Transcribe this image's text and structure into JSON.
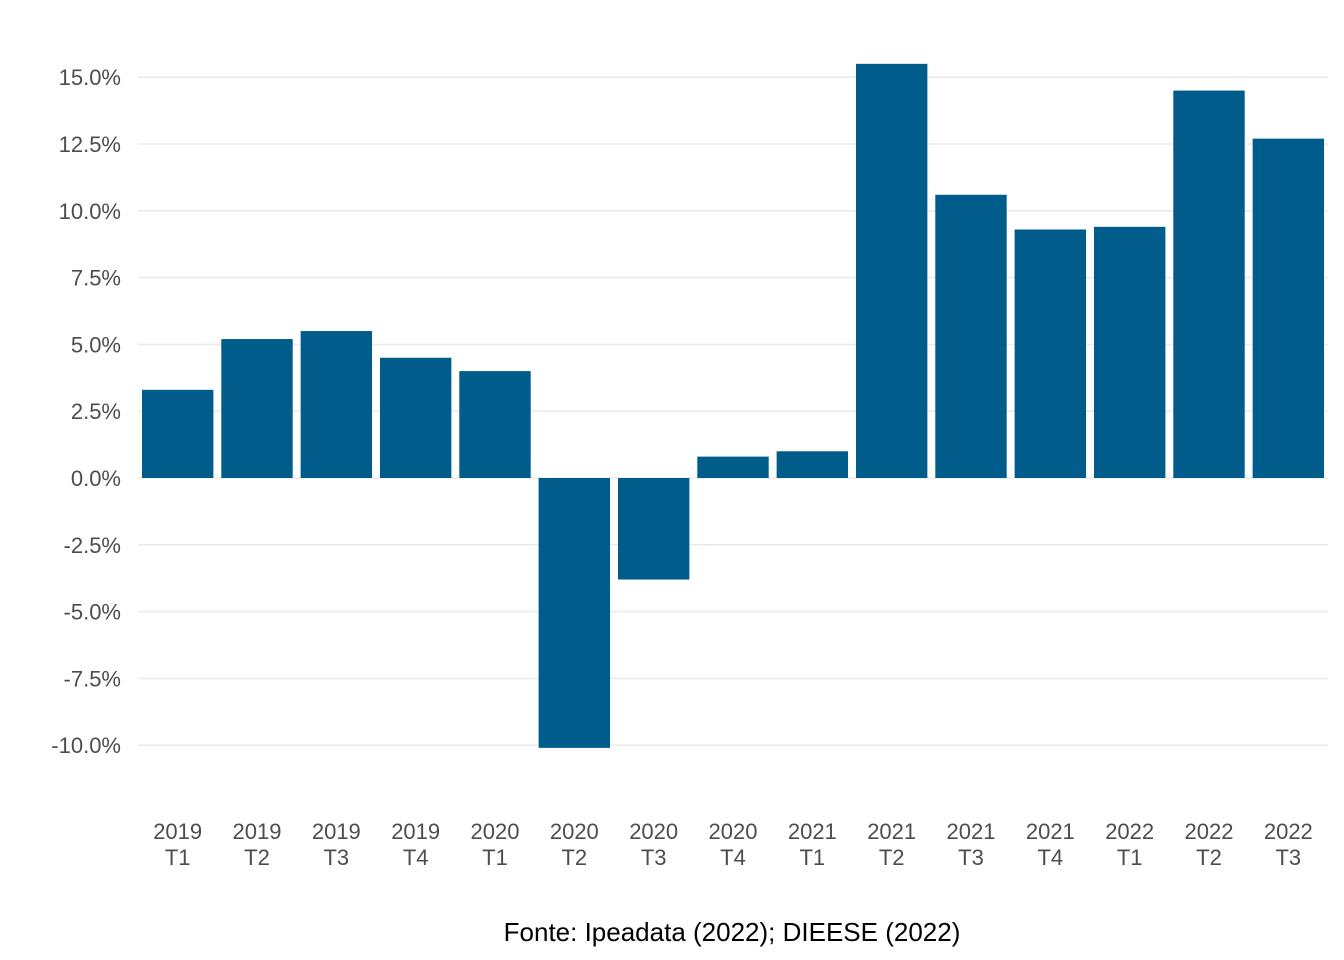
{
  "chart_data": {
    "type": "bar",
    "categories": [
      [
        "2019",
        "T1"
      ],
      [
        "2019",
        "T2"
      ],
      [
        "2019",
        "T3"
      ],
      [
        "2019",
        "T4"
      ],
      [
        "2020",
        "T1"
      ],
      [
        "2020",
        "T2"
      ],
      [
        "2020",
        "T3"
      ],
      [
        "2020",
        "T4"
      ],
      [
        "2021",
        "T1"
      ],
      [
        "2021",
        "T2"
      ],
      [
        "2021",
        "T3"
      ],
      [
        "2021",
        "T4"
      ],
      [
        "2022",
        "T1"
      ],
      [
        "2022",
        "T2"
      ],
      [
        "2022",
        "T3"
      ]
    ],
    "values": [
      3.3,
      5.2,
      5.5,
      4.5,
      4.0,
      -10.1,
      -3.8,
      0.8,
      1.0,
      15.5,
      10.6,
      9.3,
      9.4,
      14.5,
      12.7
    ],
    "y_ticks": [
      -10.0,
      -7.5,
      -5.0,
      -2.5,
      0.0,
      2.5,
      5.0,
      7.5,
      10.0,
      12.5,
      15.0
    ],
    "y_tick_labels": [
      "-10.0%",
      "-7.5%",
      "-5.0%",
      "-2.5%",
      "0.0%",
      "2.5%",
      "5.0%",
      "7.5%",
      "10.0%",
      "12.5%",
      "15.0%"
    ],
    "ylim": [
      -10.1,
      15.5
    ],
    "grid": true,
    "legend": false,
    "bar_color": "#005c8a",
    "grid_color": "#ebebeb",
    "caption": "Fonte: Ipeadata (2022); DIEESE (2022)"
  }
}
